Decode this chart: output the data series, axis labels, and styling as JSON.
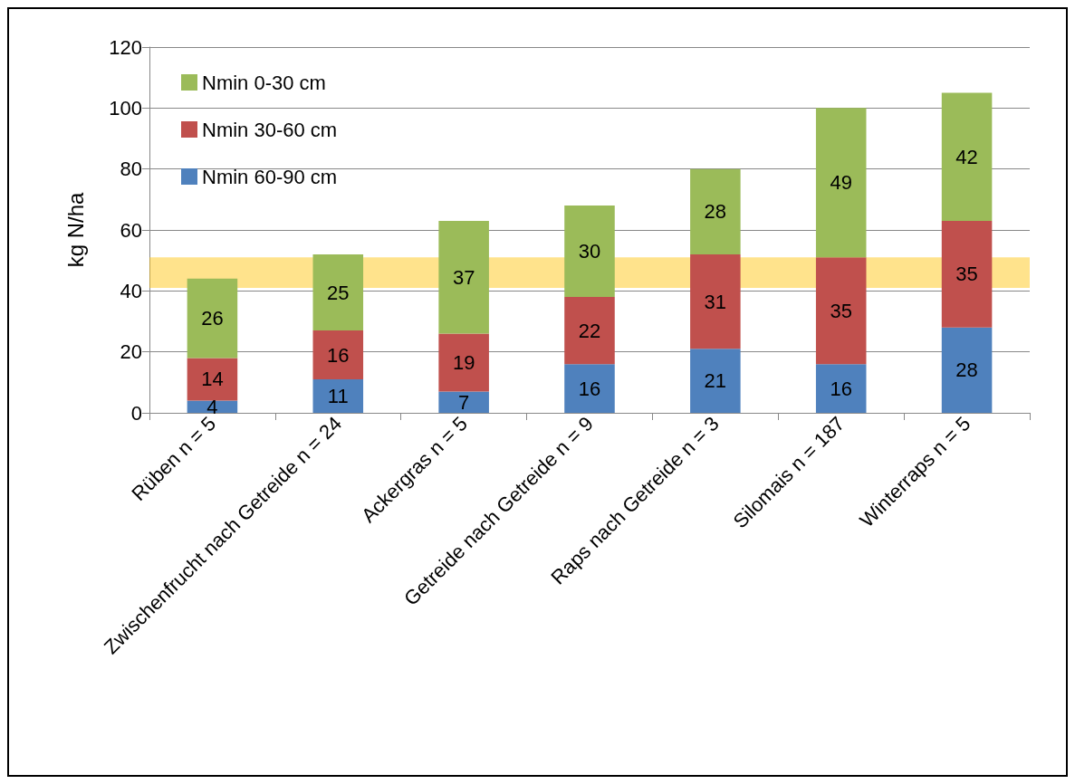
{
  "chart_data": {
    "type": "bar",
    "stacked": true,
    "ylabel": "kg N/ha",
    "categories": [
      "Rüben n = 5",
      "Zwischenfrucht nach Getreide n = 24",
      "Ackergras n = 5",
      "Getreide nach Getreide n = 9",
      "Raps nach Getreide n = 3",
      "Silomais n = 187",
      "Winterraps n = 5"
    ],
    "series": [
      {
        "name": "Nmin 60-90 cm",
        "color": "#4f81bd",
        "values": [
          4,
          11,
          7,
          16,
          21,
          16,
          28
        ]
      },
      {
        "name": "Nmin 30-60 cm",
        "color": "#c0504d",
        "values": [
          14,
          16,
          19,
          22,
          31,
          35,
          35
        ]
      },
      {
        "name": "Nmin 0-30 cm",
        "color": "#9bbb59",
        "values": [
          26,
          25,
          37,
          30,
          28,
          49,
          42
        ]
      }
    ],
    "ylim": [
      0,
      120
    ],
    "yticks": [
      0,
      20,
      40,
      60,
      80,
      100,
      120
    ],
    "grid": "y",
    "legend": "top left",
    "data_labels": true,
    "bands": [
      {
        "axis": "y",
        "from": 41,
        "to": 51,
        "color": "#ffc000"
      }
    ]
  }
}
